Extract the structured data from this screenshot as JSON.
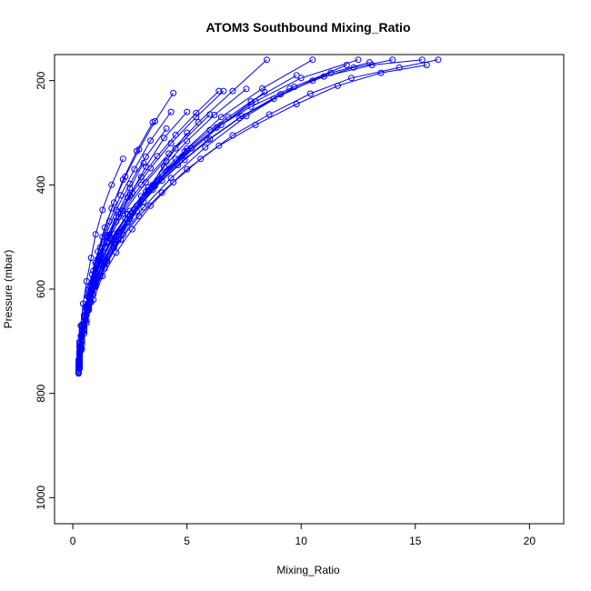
{
  "chart_data": {
    "type": "line",
    "title": "ATOM3 Southbound Mixing_Ratio",
    "xlabel": "Mixing_Ratio",
    "ylabel": "Pressure (mbar)",
    "xlim": [
      -0.8,
      21.5
    ],
    "ylim": [
      1050,
      150
    ],
    "y_axis_inverted": true,
    "x_ticks": [
      0,
      5,
      10,
      15,
      20
    ],
    "x_tick_labels": [
      "0",
      "5",
      "10",
      "15",
      "20"
    ],
    "y_ticks": [
      200,
      400,
      600,
      800,
      1000
    ],
    "y_tick_labels": [
      "200",
      "400",
      "600",
      "800",
      "1000"
    ],
    "grid": false,
    "legend": "none",
    "marker": "open-circle",
    "series_color": "#0000ff",
    "series": [
      {
        "x": [
          0.3,
          0.3,
          0.4,
          0.5,
          0.7,
          1.0,
          1.5,
          2.2,
          3.0,
          4.2,
          5.5,
          7.0,
          8.5
        ],
        "y": [
          750,
          720,
          690,
          650,
          600,
          550,
          500,
          450,
          400,
          340,
          280,
          220,
          160
        ]
      },
      {
        "x": [
          0.3,
          0.4,
          0.5,
          0.7,
          1.0,
          1.4,
          2.0,
          2.8,
          3.8,
          5.0,
          6.5,
          8.3,
          10.5
        ],
        "y": [
          748,
          715,
          680,
          640,
          590,
          540,
          490,
          440,
          390,
          330,
          270,
          215,
          160
        ]
      },
      {
        "x": [
          0.25,
          0.3,
          0.4,
          0.6,
          0.8,
          1.2,
          1.8,
          2.5,
          3.5,
          4.8,
          6.3,
          8.0,
          10.0,
          12.5
        ],
        "y": [
          745,
          712,
          678,
          635,
          590,
          545,
          495,
          450,
          400,
          345,
          290,
          240,
          195,
          160
        ]
      },
      {
        "x": [
          0.3,
          0.4,
          0.6,
          0.9,
          1.3,
          1.9,
          2.6,
          3.4,
          4.4,
          5.6,
          7.0,
          8.6,
          10.4,
          12.2,
          14.3,
          16.0
        ],
        "y": [
          740,
          705,
          665,
          620,
          575,
          530,
          485,
          440,
          395,
          350,
          305,
          265,
          225,
          195,
          175,
          160
        ]
      },
      {
        "x": [
          0.25,
          0.3,
          0.5,
          0.7,
          1.0,
          1.5,
          2.1,
          2.9,
          3.9,
          5.0,
          6.4,
          8.0,
          9.8,
          11.6,
          13.5,
          15.5
        ],
        "y": [
          760,
          725,
          685,
          640,
          595,
          550,
          505,
          460,
          415,
          370,
          325,
          285,
          245,
          210,
          185,
          170
        ]
      },
      {
        "x": [
          0.3,
          0.35,
          0.5,
          0.8,
          1.2,
          1.8,
          2.5,
          3.3,
          4.1,
          5.0
        ],
        "y": [
          745,
          710,
          670,
          625,
          575,
          520,
          465,
          410,
          355,
          300
        ]
      },
      {
        "x": [
          0.3,
          0.4,
          0.6,
          0.9,
          1.4,
          2.0,
          2.8,
          3.8,
          5.2,
          6.8
        ],
        "y": [
          735,
          700,
          660,
          610,
          560,
          505,
          450,
          390,
          330,
          270
        ]
      },
      {
        "x": [
          0.25,
          0.3,
          0.4,
          0.5,
          0.7,
          1.0,
          1.4,
          1.9,
          2.5,
          3.2,
          4.0,
          5.0
        ],
        "y": [
          750,
          722,
          690,
          655,
          615,
          570,
          520,
          470,
          420,
          365,
          310,
          260
        ]
      },
      {
        "x": [
          0.3,
          0.3,
          0.4,
          0.6,
          0.9,
          1.2,
          1.7,
          2.3,
          3.0,
          3.9,
          5.0,
          6.3,
          7.8,
          9.5,
          11.3,
          13.0
        ],
        "y": [
          730,
          700,
          668,
          632,
          590,
          550,
          508,
          465,
          422,
          378,
          335,
          290,
          250,
          215,
          185,
          165
        ]
      },
      {
        "x": [
          0.3,
          0.4,
          0.6,
          0.8,
          1.0,
          1.3,
          1.7,
          2.2,
          2.8,
          3.5
        ],
        "y": [
          742,
          700,
          650,
          600,
          550,
          500,
          445,
          390,
          335,
          280
        ]
      },
      {
        "x": [
          0.25,
          0.3,
          0.35,
          0.5,
          0.7,
          1.0,
          1.5,
          2.2,
          3.2,
          4.5,
          6.0
        ],
        "y": [
          755,
          725,
          690,
          650,
          605,
          560,
          510,
          455,
          395,
          330,
          265
        ]
      },
      {
        "x": [
          0.3,
          0.4,
          0.5,
          0.7,
          0.9,
          1.2,
          1.6,
          2.1,
          2.7,
          3.4,
          4.3
        ],
        "y": [
          725,
          690,
          650,
          610,
          565,
          520,
          470,
          420,
          370,
          315,
          260
        ]
      },
      {
        "x": [
          0.3,
          0.35,
          0.45,
          0.6,
          0.85,
          1.2,
          1.7,
          2.4,
          3.3,
          4.5,
          6.0,
          7.8,
          9.8
        ],
        "y": [
          752,
          718,
          682,
          642,
          598,
          552,
          505,
          456,
          405,
          350,
          295,
          240,
          190
        ]
      },
      {
        "x": [
          0.25,
          0.3,
          0.4,
          0.55,
          0.75,
          1.05,
          1.5,
          2.0,
          2.6,
          3.4,
          4.3,
          5.4,
          6.6
        ],
        "y": [
          738,
          706,
          672,
          635,
          595,
          552,
          508,
          462,
          415,
          368,
          320,
          270,
          220
        ]
      },
      {
        "x": [
          0.3,
          0.3,
          0.35,
          0.45,
          0.6,
          0.8,
          1.0,
          1.3,
          1.7,
          2.2
        ],
        "y": [
          748,
          710,
          670,
          628,
          585,
          540,
          495,
          448,
          400,
          350
        ]
      },
      {
        "x": [
          0.3,
          0.4,
          0.55,
          0.75,
          1.0,
          1.35,
          1.8,
          2.4,
          3.1,
          3.9,
          4.9,
          6.0,
          7.3,
          8.8,
          10.5,
          12.3,
          14.0
        ],
        "y": [
          732,
          698,
          662,
          625,
          588,
          550,
          512,
          472,
          432,
          392,
          352,
          312,
          272,
          235,
          200,
          175,
          160
        ]
      },
      {
        "x": [
          0.25,
          0.3,
          0.4,
          0.6,
          0.9,
          1.3,
          1.9,
          2.7,
          3.7,
          4.9
        ],
        "y": [
          758,
          722,
          683,
          640,
          595,
          548,
          498,
          446,
          392,
          336
        ]
      },
      {
        "x": [
          0.3,
          0.35,
          0.5,
          0.7,
          1.0,
          1.4,
          1.9,
          2.5,
          3.2,
          4.0,
          5.0,
          6.2,
          7.6
        ],
        "y": [
          744,
          712,
          676,
          636,
          594,
          551,
          506,
          460,
          413,
          365,
          316,
          266,
          216
        ]
      },
      {
        "x": [
          0.3,
          0.4,
          0.5,
          0.6,
          0.8,
          1.0,
          1.2,
          1.5,
          1.9,
          2.4,
          3.0,
          3.7,
          4.5,
          5.4,
          6.4
        ],
        "y": [
          728,
          700,
          670,
          638,
          604,
          570,
          535,
          499,
          462,
          424,
          385,
          345,
          304,
          262,
          220
        ]
      },
      {
        "x": [
          0.3,
          0.3,
          0.4,
          0.6,
          0.9,
          1.3,
          1.8,
          2.6,
          3.6,
          4.9,
          6.5,
          8.4
        ],
        "y": [
          750,
          718,
          680,
          640,
          597,
          552,
          505,
          455,
          402,
          345,
          285,
          222
        ]
      },
      {
        "x": [
          0.25,
          0.3,
          0.45,
          0.65,
          0.95,
          1.35,
          1.9,
          2.6,
          3.5,
          4.6,
          5.9,
          7.4,
          9.1,
          11.0,
          13.1,
          15.3
        ],
        "y": [
          736,
          703,
          667,
          628,
          587,
          544,
          500,
          455,
          409,
          362,
          314,
          268,
          226,
          192,
          170,
          160
        ]
      },
      {
        "x": [
          0.3,
          0.4,
          0.5,
          0.7,
          0.9,
          1.2,
          1.6,
          2.0,
          2.5,
          3.1
        ],
        "y": [
          718,
          686,
          652,
          616,
          578,
          538,
          496,
          452,
          406,
          358
        ]
      },
      {
        "x": [
          0.3,
          0.35,
          0.5,
          0.7,
          1.0,
          1.5,
          2.2,
          3.1,
          4.3,
          5.8,
          7.6,
          9.7,
          12.0
        ],
        "y": [
          747,
          714,
          677,
          637,
          593,
          546,
          496,
          443,
          387,
          328,
          268,
          212,
          170
        ]
      },
      {
        "x": [
          0.3,
          0.4,
          0.5,
          0.65,
          0.85,
          1.1,
          1.45,
          1.9,
          2.5,
          3.2,
          4.1
        ],
        "y": [
          740,
          705,
          668,
          628,
          586,
          542,
          496,
          448,
          398,
          346,
          292
        ]
      },
      {
        "x": [
          0.25,
          0.3,
          0.4,
          0.5,
          0.65,
          0.85,
          1.1,
          1.4,
          1.8,
          2.3,
          2.9,
          3.6,
          4.4
        ],
        "y": [
          762,
          728,
          692,
          654,
          614,
          572,
          528,
          482,
          434,
          384,
          332,
          278,
          224
        ]
      }
    ]
  }
}
